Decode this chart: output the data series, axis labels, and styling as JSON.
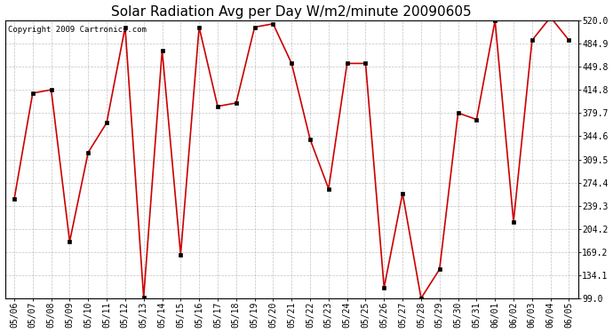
{
  "title": "Solar Radiation Avg per Day W/m2/minute 20090605",
  "copyright": "Copyright 2009 Cartronics.com",
  "line_color": "#cc0000",
  "marker_color": "#000000",
  "bg_color": "#ffffff",
  "grid_color": "#999999",
  "labels": [
    "05/06",
    "05/07",
    "05/08",
    "05/09",
    "05/10",
    "05/11",
    "05/12",
    "05/13",
    "05/14",
    "05/15",
    "05/16",
    "05/17",
    "05/18",
    "05/19",
    "05/20",
    "05/21",
    "05/22",
    "05/23",
    "05/24",
    "05/25",
    "05/26",
    "05/27",
    "05/28",
    "05/29",
    "05/30",
    "05/31",
    "06/01",
    "06/02",
    "06/03",
    "06/04",
    "06/05"
  ],
  "values": [
    249,
    410,
    415,
    185,
    320,
    365,
    510,
    100,
    475,
    165,
    510,
    390,
    395,
    510,
    515,
    455,
    340,
    265,
    455,
    455,
    115,
    258,
    99,
    143,
    380,
    370,
    520,
    215,
    490,
    525,
    490
  ],
  "yticks": [
    99.0,
    134.1,
    169.2,
    204.2,
    239.3,
    274.4,
    309.5,
    344.6,
    379.7,
    414.8,
    449.8,
    484.9,
    520.0
  ],
  "ylim": [
    99.0,
    520.0
  ],
  "title_fontsize": 11,
  "tick_fontsize": 7,
  "copyright_fontsize": 6.5
}
